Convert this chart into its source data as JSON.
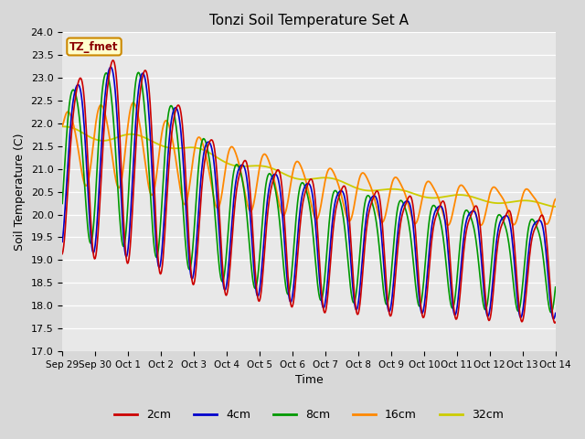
{
  "title": "Tonzi Soil Temperature Set A",
  "xlabel": "Time",
  "ylabel": "Soil Temperature (C)",
  "ylim": [
    17.0,
    24.0
  ],
  "yticks": [
    17.0,
    17.5,
    18.0,
    18.5,
    19.0,
    19.5,
    20.0,
    20.5,
    21.0,
    21.5,
    22.0,
    22.5,
    23.0,
    23.5,
    24.0
  ],
  "xtick_labels": [
    "Sep 29",
    "Sep 30",
    "Oct 1",
    "Oct 2",
    "Oct 3",
    "Oct 4",
    "Oct 5",
    "Oct 6",
    "Oct 7",
    "Oct 8",
    "Oct 9",
    "Oct 10",
    "Oct 11",
    "Oct 12",
    "Oct 13",
    "Oct 14"
  ],
  "colors": {
    "2cm": "#cc0000",
    "4cm": "#0000cc",
    "8cm": "#009900",
    "16cm": "#ff8800",
    "32cm": "#cccc00"
  },
  "legend_label": "TZ_fmet",
  "legend_bg": "#ffffcc",
  "legend_border": "#cc8800",
  "plot_bg": "#e8e8e8",
  "fig_bg": "#d8d8d8"
}
